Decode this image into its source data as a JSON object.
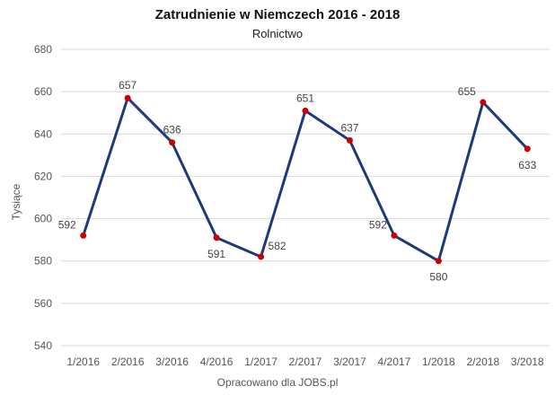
{
  "chart_data": {
    "type": "line",
    "title": "Zatrudnienie w Niemczech 2016 - 2018",
    "subtitle": "Rolnictwo",
    "xlabel": "",
    "ylabel": "Tysiące",
    "categories": [
      "1/2016",
      "2/2016",
      "3/2016",
      "4/2016",
      "1/2017",
      "2/2017",
      "3/2017",
      "4/2017",
      "1/2018",
      "2/2018",
      "3/2018"
    ],
    "series": [
      {
        "values": [
          592,
          657,
          636,
          591,
          582,
          651,
          637,
          592,
          580,
          655,
          633
        ]
      }
    ],
    "ylim": [
      540,
      680
    ],
    "yticks": [
      540,
      560,
      580,
      600,
      620,
      640,
      660,
      680
    ],
    "grid": true,
    "legend": "none",
    "colors": {
      "line": "#1f3a7a",
      "marker": "#cc0000",
      "grid": "#d9d9d9"
    }
  },
  "footer": {
    "source": "Opracowano dla JOBS.pl"
  }
}
